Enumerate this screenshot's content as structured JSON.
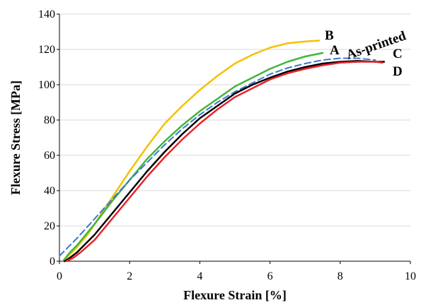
{
  "chart_data": {
    "type": "line",
    "title": "",
    "xlabel": "Flexure Strain [%]",
    "ylabel": "Flexure Stress [MPa]",
    "xlim": [
      0,
      10
    ],
    "ylim": [
      0,
      140
    ],
    "xticks": [
      0,
      2,
      4,
      6,
      8,
      10
    ],
    "yticks": [
      0,
      20,
      40,
      60,
      80,
      100,
      120,
      140
    ],
    "grid": "horizontal",
    "legend": "none",
    "series": [
      {
        "name": "B",
        "color": "#f5c000",
        "dashed": false,
        "x": [
          0.1,
          0.3,
          0.5,
          0.8,
          1.0,
          1.5,
          2.0,
          2.5,
          3.0,
          3.5,
          4.0,
          4.5,
          5.0,
          5.5,
          6.0,
          6.5,
          7.0,
          7.4
        ],
        "y": [
          0,
          4,
          8,
          15,
          21,
          36,
          51,
          65,
          78,
          88,
          97,
          105,
          112,
          117,
          121,
          123.5,
          124.5,
          125
        ]
      },
      {
        "name": "A",
        "color": "#44b53a",
        "dashed": false,
        "x": [
          0.1,
          0.3,
          0.5,
          1.0,
          1.5,
          2.0,
          2.5,
          3.0,
          3.5,
          4.0,
          4.5,
          5.0,
          5.5,
          6.0,
          6.5,
          7.0,
          7.5
        ],
        "y": [
          0,
          5,
          9,
          21,
          34,
          46,
          58,
          68,
          77,
          85,
          92,
          99,
          104,
          109,
          113,
          116,
          118
        ]
      },
      {
        "name": "As-printed",
        "color": "#3a78d0",
        "dashed": true,
        "x": [
          0,
          0.5,
          1.0,
          1.5,
          2.0,
          2.5,
          3.0,
          3.5,
          4.0,
          4.5,
          5.0,
          5.5,
          6.0,
          6.5,
          7.0,
          7.5,
          8.0,
          8.5,
          9.0
        ],
        "y": [
          3,
          13,
          24,
          35,
          46,
          56,
          66,
          75,
          83,
          90,
          96,
          101,
          106,
          109.5,
          112,
          114,
          115,
          115,
          114
        ]
      },
      {
        "name": "C",
        "color": "#000000",
        "dashed": false,
        "x": [
          0.15,
          0.3,
          0.5,
          1.0,
          1.5,
          2.0,
          2.5,
          3.0,
          3.5,
          4.0,
          4.5,
          5.0,
          5.5,
          6.0,
          6.5,
          7.0,
          7.5,
          8.0,
          8.5,
          9.0,
          9.25
        ],
        "y": [
          0,
          2,
          5,
          15,
          27,
          39,
          51,
          62,
          72,
          81,
          88,
          95,
          100,
          104,
          107.5,
          110,
          112,
          113,
          113.5,
          113,
          113
        ]
      },
      {
        "name": "D",
        "color": "#e8222a",
        "dashed": false,
        "x": [
          0.2,
          0.4,
          0.6,
          1.0,
          1.5,
          2.0,
          2.5,
          3.0,
          3.5,
          4.0,
          4.5,
          5.0,
          5.5,
          6.0,
          6.5,
          7.0,
          7.5,
          8.0,
          8.5,
          9.0,
          9.2
        ],
        "y": [
          0,
          2,
          5,
          12,
          24,
          36,
          48,
          59,
          69,
          78,
          86,
          93,
          98,
          103,
          106.5,
          109,
          111,
          112.5,
          113,
          113,
          112.5
        ]
      }
    ],
    "annotations": [
      {
        "text": "B",
        "series": "B"
      },
      {
        "text": "A",
        "series": "A"
      },
      {
        "text": "As-printed",
        "series": "As-printed"
      },
      {
        "text": "C",
        "series": "C"
      },
      {
        "text": "D",
        "series": "D"
      }
    ]
  }
}
